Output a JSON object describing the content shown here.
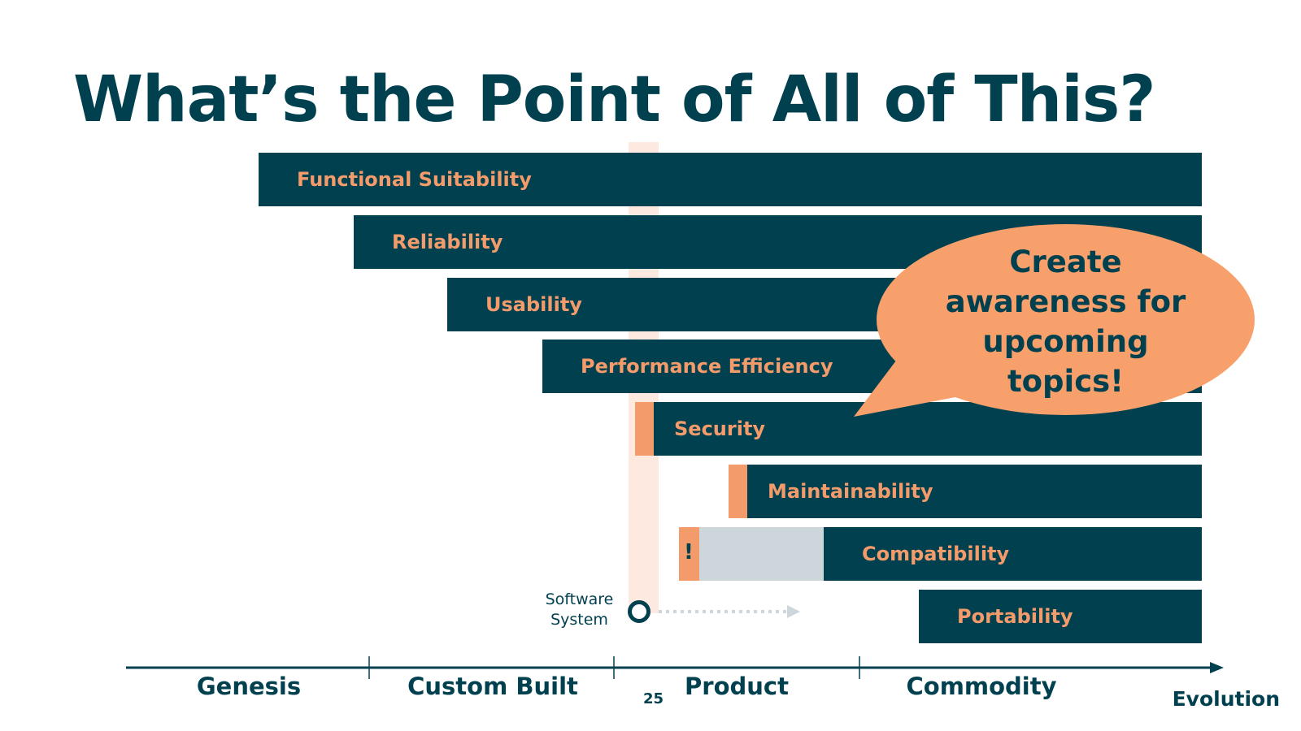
{
  "title": "What’s the Point of All of This?",
  "bars": [
    {
      "label": "Functional Suitability"
    },
    {
      "label": "Reliability"
    },
    {
      "label": "Usability"
    },
    {
      "label": "Performance Efficiency"
    },
    {
      "label": "Security"
    },
    {
      "label": "Maintainability"
    },
    {
      "label": "Compatibility",
      "marker": "!"
    },
    {
      "label": "Portability"
    }
  ],
  "callout": "Create\nawareness for\nupcoming\ntopics!",
  "software_system": "Software\nSystem",
  "axis": {
    "stages": [
      "Genesis",
      "Custom Built",
      "Product",
      "Commodity"
    ],
    "label": "Evolution"
  },
  "page_number": "25",
  "colors": {
    "dark_teal": "#00404f",
    "orange": "#f49b6b",
    "light_grey": "#ccd6db",
    "light_peach": "#fde9df"
  }
}
